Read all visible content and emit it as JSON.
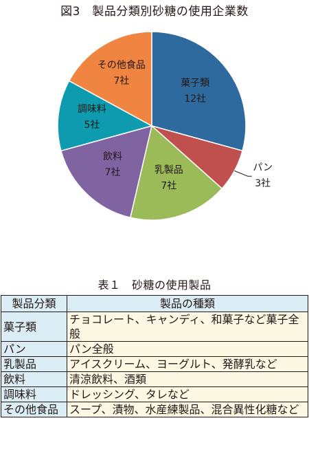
{
  "chart_title": "図3　製品分類別砂糖の使用企業数",
  "chart_data": {
    "type": "pie",
    "unit": "社",
    "slices": [
      {
        "label": "菓子類",
        "value": 12,
        "value_label": "12社",
        "color": "#2e6a9e"
      },
      {
        "label": "パン",
        "value": 3,
        "value_label": "3社",
        "color": "#c0504d"
      },
      {
        "label": "乳製品",
        "value": 7,
        "value_label": "7社",
        "color": "#9bbb59"
      },
      {
        "label": "飲料",
        "value": 7,
        "value_label": "7社",
        "color": "#8064a2"
      },
      {
        "label": "調味料",
        "value": 5,
        "value_label": "5社",
        "color": "#0e9bb0"
      },
      {
        "label": "その他食品",
        "value": 7,
        "value_label": "7社",
        "color": "#ef8540"
      }
    ]
  },
  "table": {
    "title": "表１　砂糖の使用製品",
    "headers": [
      "製品分類",
      "製品の種類"
    ],
    "rows": [
      {
        "category": "菓子類",
        "products": "チョコレート、キャンディ、和菓子など菓子全般"
      },
      {
        "category": "パン",
        "products": "パン全般"
      },
      {
        "category": "乳製品",
        "products": "アイスクリーム、ヨーグルト、発酵乳など"
      },
      {
        "category": "飲料",
        "products": "清涼飲料、酒類"
      },
      {
        "category": "調味料",
        "products": "ドレッシング、タレなど"
      },
      {
        "category": "その他食品",
        "products": "スープ、漬物、水産練製品、混合異性化糖など"
      }
    ]
  }
}
